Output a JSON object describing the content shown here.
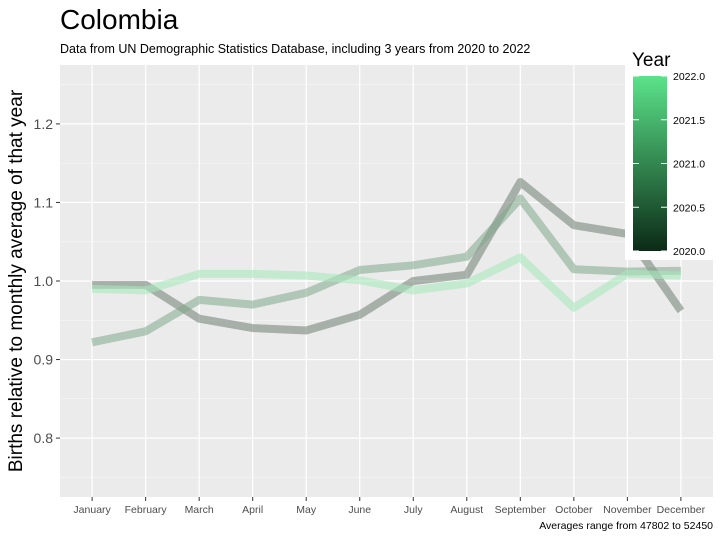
{
  "chart_data": {
    "type": "line",
    "title": "Colombia",
    "subtitle": "Data from UN Demographic Statistics Database, including 3 years from 2020 to 2022",
    "ylabel": "Births relative to monthly average of that year",
    "xlabel": "",
    "caption": "Averages range from 47802 to 52450",
    "categories": [
      "January",
      "February",
      "March",
      "April",
      "May",
      "June",
      "July",
      "August",
      "September",
      "October",
      "November",
      "December"
    ],
    "ylim": [
      0.725,
      1.275
    ],
    "yticks": [
      0.8,
      0.9,
      1.0,
      1.1,
      1.2
    ],
    "ytick_labels": [
      "0.8",
      "0.9",
      "1.0",
      "1.1",
      "1.2"
    ],
    "grid": true,
    "legend": {
      "title": "Year",
      "position": "top-right",
      "type": "colorbar",
      "range": [
        2020.0,
        2022.0
      ],
      "ticks": [
        "2020.0",
        "2020.5",
        "2021.0",
        "2021.5",
        "2022.0"
      ],
      "color_low": "#0b2a16",
      "color_high": "#5be38a"
    },
    "series": [
      {
        "year": 2020,
        "color": "#6e7f72",
        "opacity": 0.55,
        "values": [
          0.995,
          0.995,
          0.952,
          0.94,
          0.937,
          0.957,
          1.0,
          1.008,
          1.126,
          1.071,
          1.06,
          0.962
        ]
      },
      {
        "year": 2021,
        "color": "#7fa78a",
        "opacity": 0.55,
        "values": [
          0.922,
          0.936,
          0.976,
          0.97,
          0.985,
          1.014,
          1.02,
          1.031,
          1.105,
          1.015,
          1.012,
          1.013
        ]
      },
      {
        "year": 2022,
        "color": "#a9e8bc",
        "opacity": 0.6,
        "values": [
          0.99,
          0.988,
          1.009,
          1.009,
          1.007,
          1.001,
          0.988,
          0.997,
          1.03,
          0.966,
          1.009,
          1.007
        ]
      }
    ]
  }
}
